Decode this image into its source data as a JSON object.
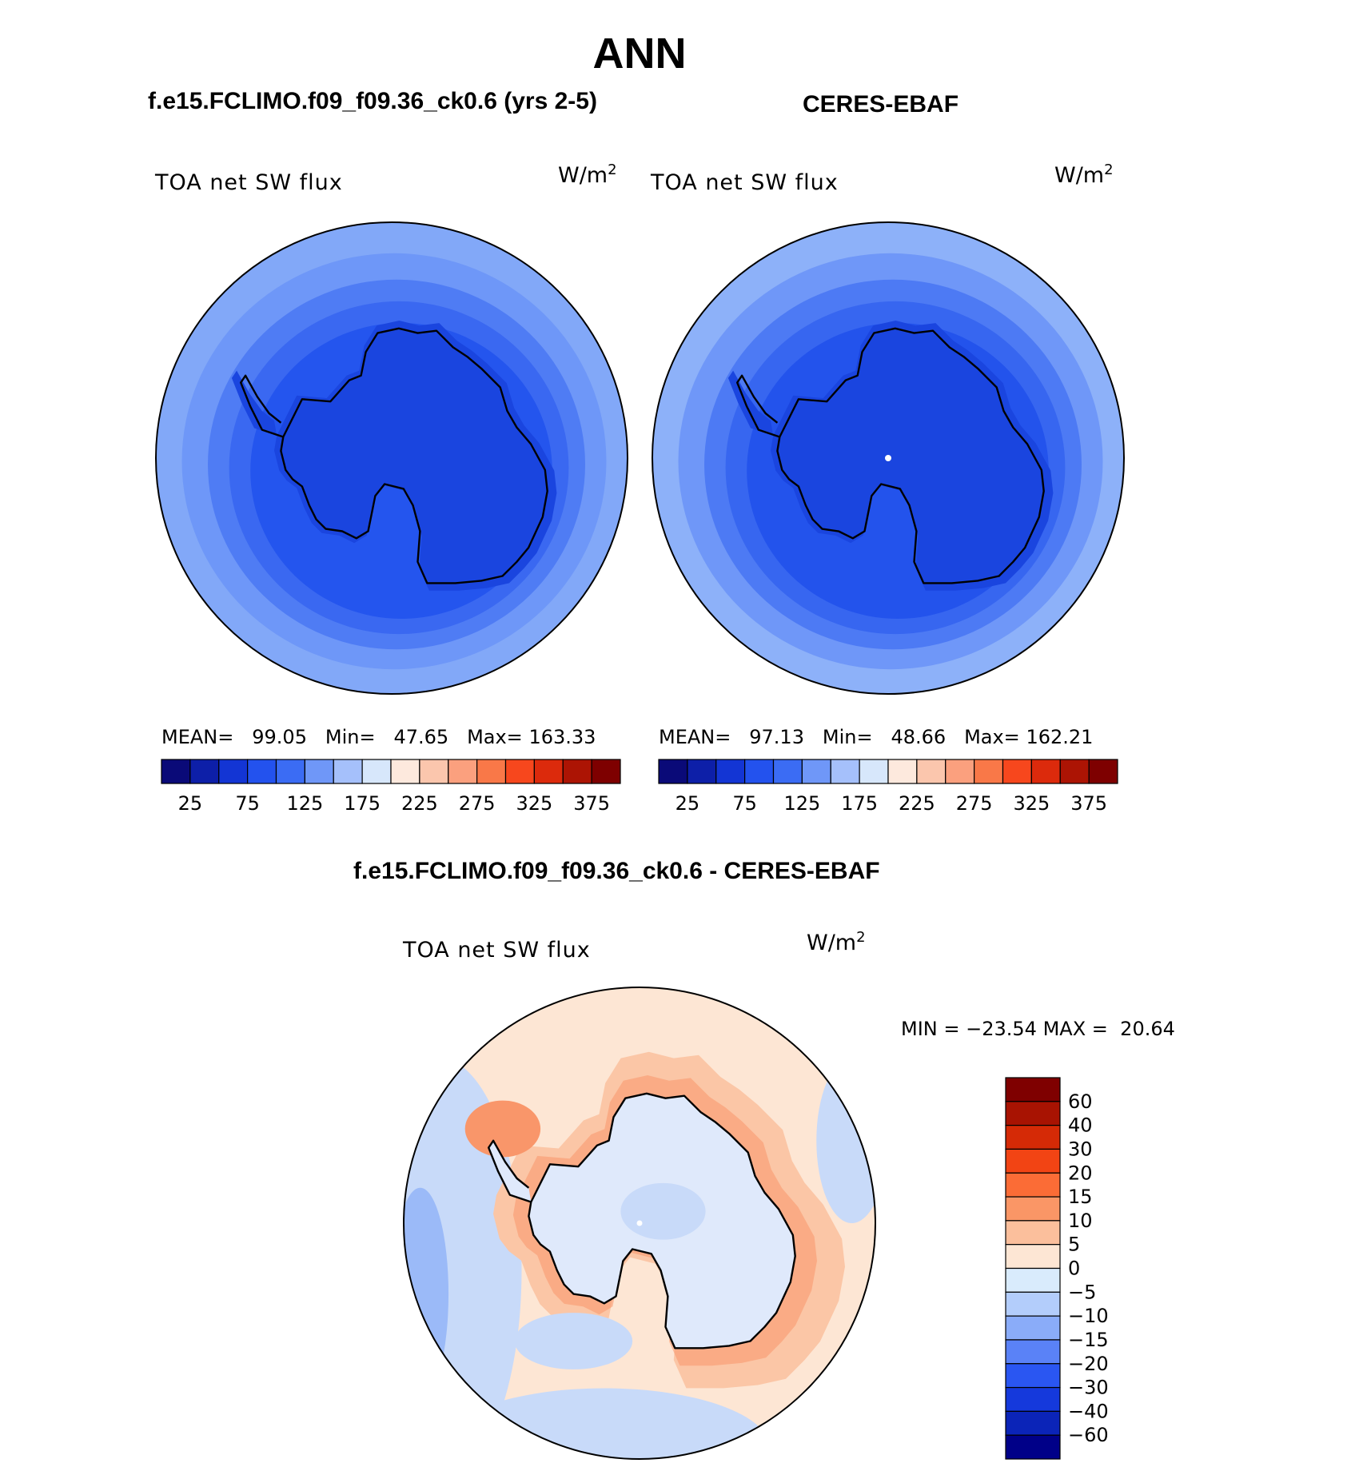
{
  "title": "ANN",
  "panels": [
    {
      "id": "model",
      "title": "f.e15.FCLIMO.f09_f09.36_ck0.6 (yrs 2-5)",
      "variable": "TOA net SW flux",
      "units": "W/m",
      "units_exp": "2",
      "stats": {
        "mean_label": "MEAN=",
        "mean": "99.05",
        "min_label": "Min=",
        "min": "47.65",
        "max_label": "Max=",
        "max": "163.33"
      }
    },
    {
      "id": "obs",
      "title": "CERES-EBAF",
      "variable": "TOA net SW flux",
      "units": "W/m",
      "units_exp": "2",
      "stats": {
        "mean_label": "MEAN=",
        "mean": "97.13",
        "min_label": "Min=",
        "min": "48.66",
        "max_label": "Max=",
        "max": "162.21"
      }
    },
    {
      "id": "diff",
      "title": "f.e15.FCLIMO.f09_f09.36_ck0.6 - CERES-EBAF",
      "variable": "TOA net SW flux",
      "units": "W/m",
      "units_exp": "2",
      "stats": {
        "min_label": "MIN =",
        "min": "−23.54",
        "max_label": "MAX =",
        "max": "20.64"
      }
    }
  ],
  "colorbar_abs": {
    "colors": [
      "#0a0a78",
      "#0d1fa8",
      "#1335d4",
      "#2352ee",
      "#3b6cf4",
      "#6f97f8",
      "#a5c0fb",
      "#d7e7fb",
      "#fde9dd",
      "#fbc6ad",
      "#fba07e",
      "#f97848",
      "#f7471d",
      "#dc2a0c",
      "#ac1404",
      "#7e0000"
    ],
    "tick_labels": [
      "25",
      "75",
      "125",
      "175",
      "225",
      "275",
      "325",
      "375"
    ]
  },
  "colorbar_diff": {
    "colors": [
      "#000088",
      "#0b24b8",
      "#1539dc",
      "#2a56f2",
      "#5a82f7",
      "#8aacf9",
      "#b3cdfb",
      "#d9ebfc",
      "#fde6d4",
      "#fbbf9c",
      "#fa9666",
      "#fb6c36",
      "#f24414",
      "#d52a06",
      "#a81302",
      "#7f0000"
    ],
    "tick_labels": [
      "−60",
      "−40",
      "−30",
      "−20",
      "−15",
      "−10",
      "−5",
      "0",
      "5",
      "10",
      "15",
      "20",
      "30",
      "40",
      "60"
    ]
  },
  "maps": {
    "model_rings": [
      "#82a8f8",
      "#6e97f8",
      "#4f7cf4",
      "#3a68f1",
      "#2455ee",
      "#1a45df"
    ],
    "obs_rings": [
      "#8db1f9",
      "#6f97f8",
      "#4d7af4",
      "#3766f0",
      "#2353ec",
      "#1a45df"
    ],
    "diff_colors": {
      "neutral": "#dfe9fb",
      "warm_light": "#fde6d4",
      "warm_mid": "#fbc6a6",
      "warm_strong": "#f9966a",
      "cool_light": "#c8daf9",
      "cool_mid": "#9bbaf8"
    }
  }
}
